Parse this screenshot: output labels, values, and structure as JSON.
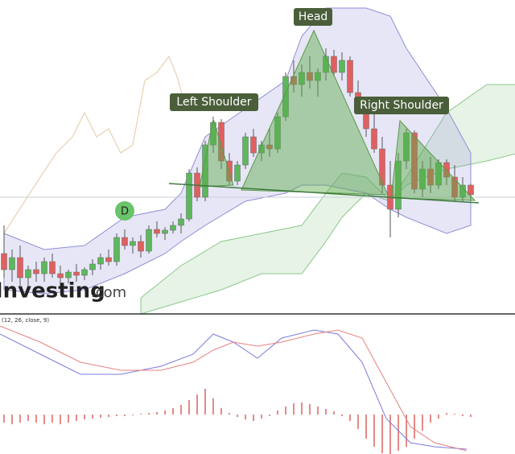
{
  "chart_data": {
    "type": "candlestick",
    "ylim": [
      0,
      390
    ],
    "annotations": [
      "Head",
      "Left Shoulder",
      "Right Shoulder",
      "D"
    ],
    "watermark": [
      "Investing",
      ".com"
    ],
    "candles": {
      "up_color": "#5cb85c",
      "down_color": "#e06060",
      "open": [
        75,
        55,
        70,
        45,
        55,
        50,
        65,
        50,
        45,
        52,
        48,
        55,
        62,
        70,
        65,
        95,
        85,
        90,
        78,
        105,
        100,
        104,
        110,
        118,
        175,
        145,
        210,
        238,
        190,
        165,
        185,
        220,
        200,
        210,
        205,
        245,
        295,
        285,
        300,
        290,
        300,
        320,
        300,
        315,
        275,
        255,
        230,
        205,
        160,
        130,
        190,
        225,
        155,
        180,
        160,
        188,
        170,
        145,
        160
      ],
      "high": [
        110,
        80,
        85,
        60,
        65,
        70,
        75,
        60,
        55,
        62,
        58,
        68,
        75,
        80,
        100,
        105,
        95,
        98,
        110,
        115,
        108,
        115,
        125,
        180,
        182,
        215,
        245,
        242,
        200,
        190,
        225,
        230,
        215,
        230,
        250,
        300,
        315,
        310,
        320,
        305,
        330,
        328,
        325,
        320,
        290,
        270,
        250,
        220,
        190,
        200,
        230,
        228,
        190,
        195,
        192,
        192,
        185,
        170,
        162
      ],
      "low": [
        45,
        40,
        35,
        30,
        40,
        40,
        45,
        35,
        38,
        40,
        42,
        48,
        55,
        60,
        60,
        80,
        75,
        70,
        75,
        95,
        92,
        100,
        100,
        115,
        140,
        140,
        200,
        180,
        160,
        160,
        180,
        195,
        190,
        195,
        200,
        240,
        275,
        270,
        280,
        270,
        290,
        295,
        290,
        270,
        250,
        220,
        200,
        150,
        95,
        120,
        180,
        150,
        145,
        150,
        155,
        160,
        140,
        140,
        140
      ],
      "close": [
        55,
        70,
        45,
        55,
        50,
        65,
        50,
        45,
        52,
        48,
        55,
        62,
        70,
        65,
        95,
        85,
        90,
        78,
        105,
        100,
        104,
        110,
        118,
        175,
        145,
        210,
        238,
        190,
        165,
        185,
        220,
        200,
        210,
        205,
        245,
        295,
        285,
        300,
        290,
        300,
        320,
        300,
        315,
        275,
        255,
        230,
        205,
        160,
        130,
        190,
        225,
        155,
        180,
        160,
        188,
        170,
        145,
        160,
        148
      ]
    },
    "bollinger": {
      "color": "#8f8fd8",
      "x": [
        0,
        5,
        10,
        15,
        20,
        22,
        25,
        30,
        35,
        37,
        40,
        45,
        48,
        50,
        55,
        58
      ],
      "upper": [
        100,
        80,
        85,
        120,
        130,
        150,
        220,
        255,
        290,
        345,
        380,
        380,
        370,
        330,
        255,
        200
      ],
      "lower": [
        30,
        25,
        30,
        50,
        75,
        90,
        110,
        140,
        150,
        160,
        160,
        150,
        130,
        120,
        100,
        110
      ]
    },
    "cloud": {
      "color": "#8cc88c",
      "x": [
        17,
        22,
        27,
        32,
        37,
        40,
        42,
        45,
        48,
        50,
        55,
        60,
        64
      ],
      "upper": [
        20,
        60,
        90,
        100,
        110,
        150,
        175,
        170,
        140,
        170,
        250,
        285,
        285
      ],
      "lower": [
        0,
        15,
        30,
        50,
        50,
        90,
        120,
        150,
        140,
        160,
        180,
        190,
        200
      ]
    },
    "lagging": {
      "color": "#e8d2b0",
      "x": [
        0,
        4.5,
        6.5,
        8.5,
        10,
        11.5,
        13,
        14.5,
        16,
        17.5,
        19,
        20.5,
        21.5,
        22.5
      ],
      "values": [
        100,
        170,
        200,
        220,
        250,
        220,
        230,
        200,
        210,
        290,
        300,
        320,
        295,
        260
      ]
    },
    "macd": {
      "subtitle": "(12, 26, close, 9)",
      "ylim": [
        -49,
        120
      ],
      "x": [
        -0.5,
        4.5,
        9.5,
        14.5,
        19.5,
        23.5,
        26,
        28.5,
        31.5,
        34.5,
        38.5,
        41.5,
        44.5,
        47.5,
        50.5,
        53.5,
        57.5
      ],
      "macd": [
        100,
        75,
        50,
        50,
        60,
        75,
        100,
        90,
        70,
        95,
        105,
        100,
        65,
        -5,
        -35,
        -40,
        -43
      ],
      "signal": [
        110,
        90,
        65,
        55,
        55,
        65,
        80,
        90,
        85,
        90,
        100,
        105,
        95,
        40,
        -15,
        -35,
        -45
      ],
      "macd_color": "#7b7be0",
      "signal_color": "#e88080",
      "histogram_color": "#e06060",
      "histogram": [
        -10,
        -12,
        -10,
        -8,
        -10,
        -12,
        -10,
        -12,
        -10,
        -8,
        -6,
        -5,
        -4,
        -3,
        -2,
        -2,
        -1,
        1,
        2,
        3,
        5,
        8,
        12,
        18,
        25,
        32,
        20,
        8,
        2,
        -3,
        -6,
        -8,
        -5,
        -2,
        5,
        10,
        14,
        15,
        13,
        10,
        7,
        4,
        -2,
        -8,
        -18,
        -30,
        -40,
        -48,
        -50,
        -45,
        -40,
        -30,
        -20,
        -10,
        -5,
        2,
        1,
        -2,
        -3
      ]
    }
  }
}
